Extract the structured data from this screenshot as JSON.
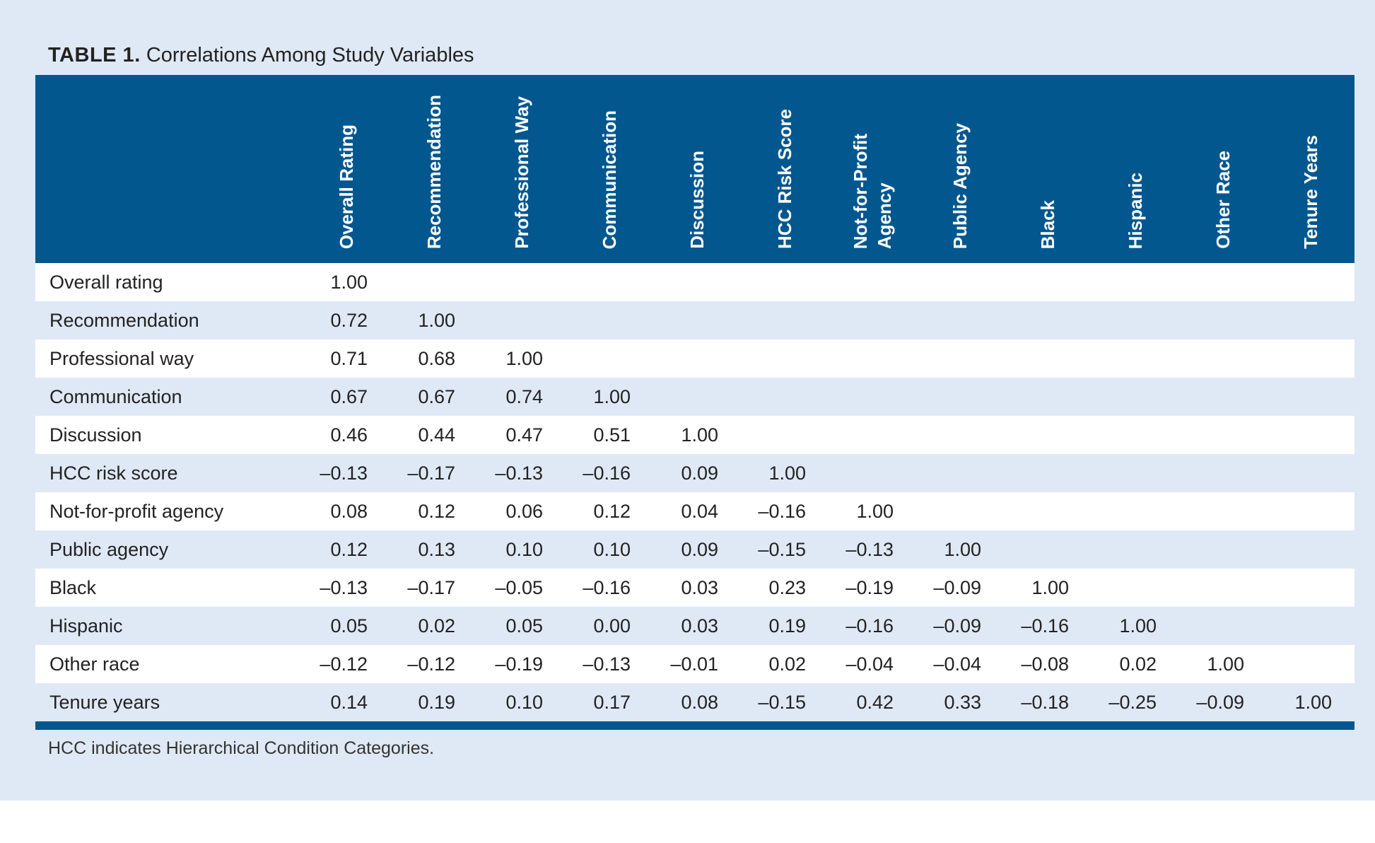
{
  "table_title": {
    "label": "TABLE 1.",
    "text": "Correlations Among Study Variables"
  },
  "columns": [
    "Overall Rating",
    "Recommendation",
    "Professional Way",
    "Communication",
    "Discussion",
    "HCC Risk Score",
    "Not-for-Profit\nAgency",
    "Public Agency",
    "Black",
    "Hispanic",
    "Other Race",
    "Tenure Years"
  ],
  "rows": [
    {
      "label": "Overall rating",
      "values": [
        "1.00",
        "",
        "",
        "",
        "",
        "",
        "",
        "",
        "",
        "",
        "",
        ""
      ]
    },
    {
      "label": "Recommendation",
      "values": [
        "0.72",
        "1.00",
        "",
        "",
        "",
        "",
        "",
        "",
        "",
        "",
        "",
        ""
      ]
    },
    {
      "label": "Professional way",
      "values": [
        "0.71",
        "0.68",
        "1.00",
        "",
        "",
        "",
        "",
        "",
        "",
        "",
        "",
        ""
      ]
    },
    {
      "label": "Communication",
      "values": [
        "0.67",
        "0.67",
        "0.74",
        "1.00",
        "",
        "",
        "",
        "",
        "",
        "",
        "",
        ""
      ]
    },
    {
      "label": "Discussion",
      "values": [
        "0.46",
        "0.44",
        "0.47",
        "0.51",
        "1.00",
        "",
        "",
        "",
        "",
        "",
        "",
        ""
      ]
    },
    {
      "label": "HCC risk score",
      "values": [
        "–0.13",
        "–0.17",
        "–0.13",
        "–0.16",
        "0.09",
        "1.00",
        "",
        "",
        "",
        "",
        "",
        ""
      ]
    },
    {
      "label": "Not-for-profit agency",
      "values": [
        "0.08",
        "0.12",
        "0.06",
        "0.12",
        "0.04",
        "–0.16",
        "1.00",
        "",
        "",
        "",
        "",
        ""
      ]
    },
    {
      "label": "Public agency",
      "values": [
        "0.12",
        "0.13",
        "0.10",
        "0.10",
        "0.09",
        "–0.15",
        "–0.13",
        "1.00",
        "",
        "",
        "",
        ""
      ]
    },
    {
      "label": "Black",
      "values": [
        "–0.13",
        "–0.17",
        "–0.05",
        "–0.16",
        "0.03",
        "0.23",
        "–0.19",
        "–0.09",
        "1.00",
        "",
        "",
        ""
      ]
    },
    {
      "label": "Hispanic",
      "values": [
        "0.05",
        "0.02",
        "0.05",
        "0.00",
        "0.03",
        "0.19",
        "–0.16",
        "–0.09",
        "–0.16",
        "1.00",
        "",
        ""
      ]
    },
    {
      "label": "Other race",
      "values": [
        "–0.12",
        "–0.12",
        "–0.19",
        "–0.13",
        "–0.01",
        "0.02",
        "–0.04",
        "–0.04",
        "–0.08",
        "0.02",
        "1.00",
        ""
      ]
    },
    {
      "label": "Tenure years",
      "values": [
        "0.14",
        "0.19",
        "0.10",
        "0.17",
        "0.08",
        "–0.15",
        "0.42",
        "0.33",
        "–0.18",
        "–0.25",
        "–0.09",
        "1.00"
      ]
    }
  ],
  "footnote": "HCC indicates Hierarchical Condition Categories.",
  "colors": {
    "header_bg": "#02578f",
    "panel_bg": "#dfe9f5",
    "row_alt": "#ffffff"
  }
}
